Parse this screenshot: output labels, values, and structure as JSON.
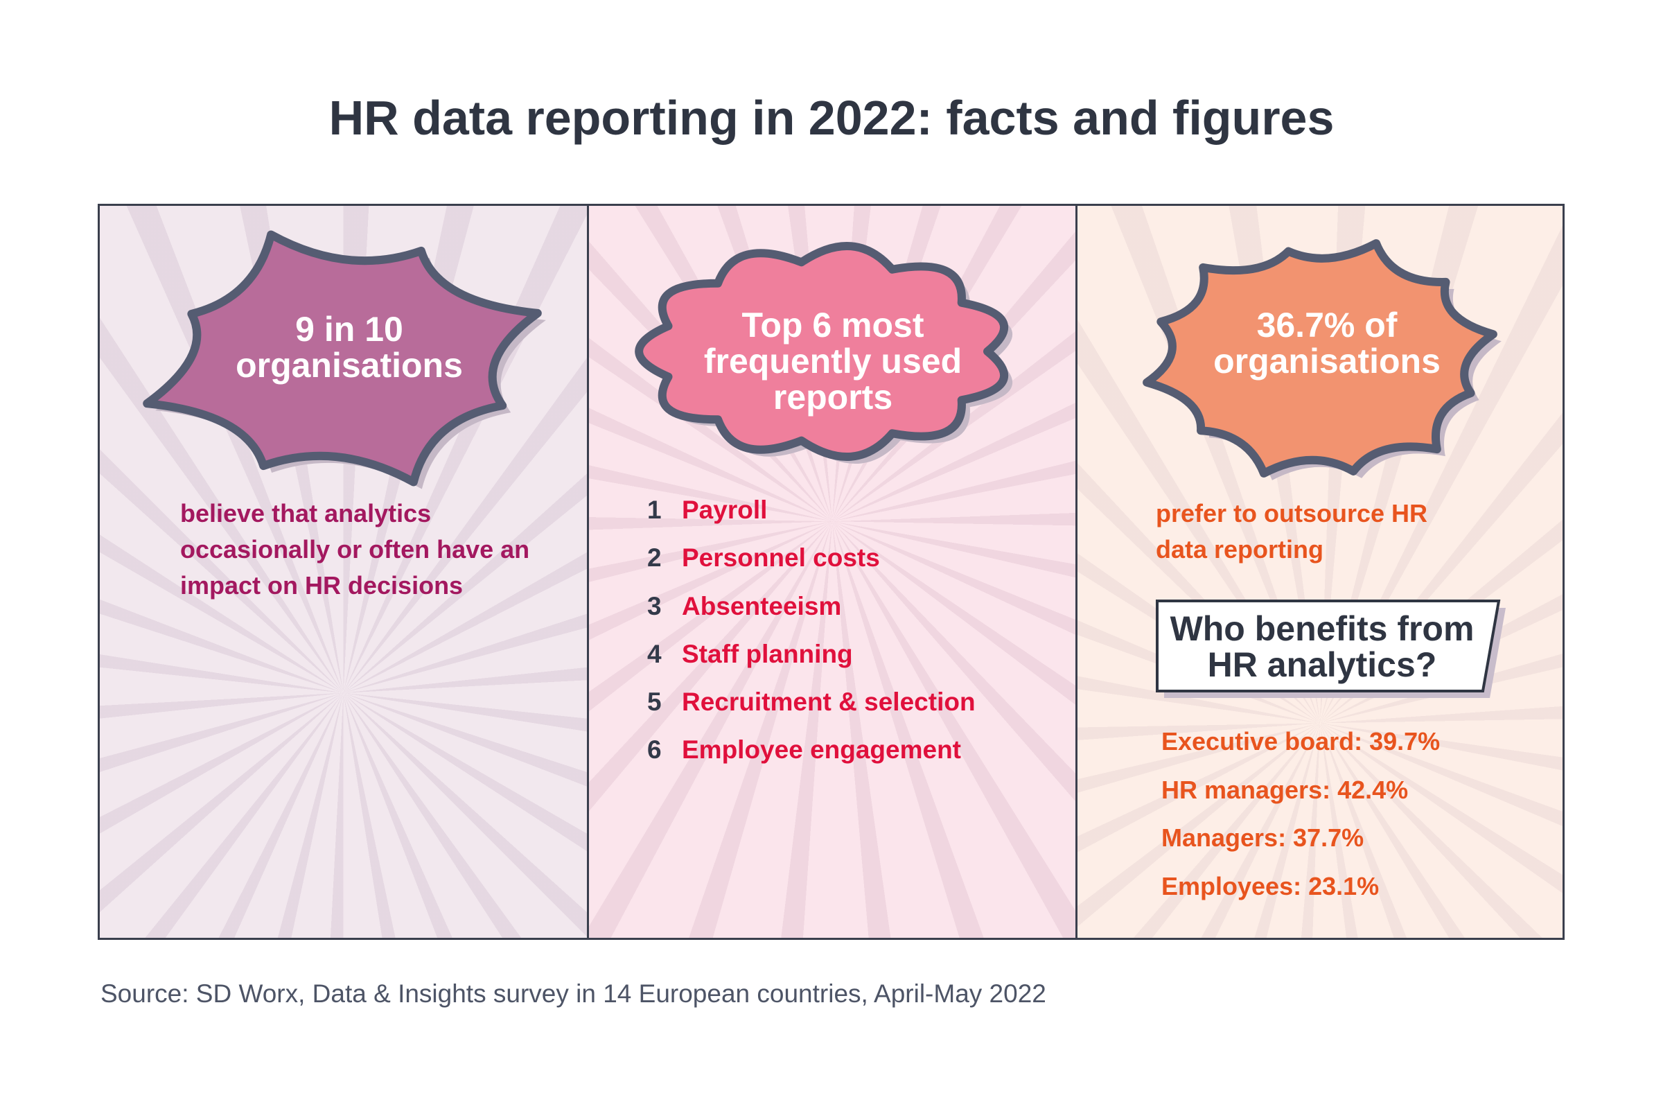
{
  "title": "HR data reporting in 2022: facts and figures",
  "colors": {
    "left_bg": "#f2e8ee",
    "middle_bg": "#fbe5ec",
    "right_bg": "#fdeee7",
    "left_burst": "#b86c9a",
    "cloud": "#ef7f9c",
    "right_burst": "#f29370",
    "outline": "#555c72",
    "left_text": "#a3185f",
    "list_text": "#e0103c",
    "right_text": "#e8541e"
  },
  "panels": {
    "left": {
      "headline_line1": "9 in 10",
      "headline_line2": "organisations",
      "description": "believe that analytics occasionally or often have an impact on HR decisions"
    },
    "middle": {
      "headline_line1": "Top 6 most",
      "headline_line2": "frequently used",
      "headline_line3": "reports",
      "items": [
        {
          "rank": "1",
          "label": "Payroll"
        },
        {
          "rank": "2",
          "label": "Personnel costs"
        },
        {
          "rank": "3",
          "label": "Absenteeism"
        },
        {
          "rank": "4",
          "label": "Staff planning"
        },
        {
          "rank": "5",
          "label": "Recruitment & selection"
        },
        {
          "rank": "6",
          "label": "Employee engagement"
        }
      ]
    },
    "right": {
      "headline_line1": "36.7% of",
      "headline_line2": "organisations",
      "description": "prefer to outsource HR data reporting",
      "question_line1": "Who benefits from",
      "question_line2": "HR analytics?",
      "stats": [
        "Executive board: 39.7%",
        "HR managers: 42.4%",
        "Managers: 37.7%",
        "Employees: 23.1%"
      ]
    }
  },
  "source": "Source: SD Worx, Data & Insights survey in 14 European countries, April-May 2022"
}
